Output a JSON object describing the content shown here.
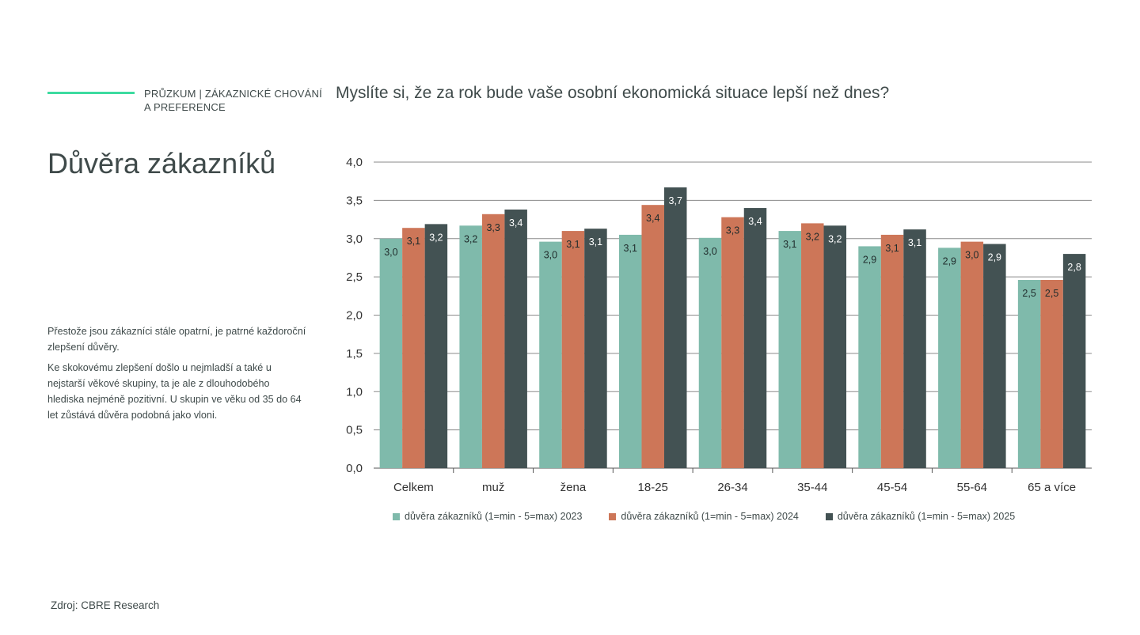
{
  "header": {
    "section_label_line1": "PRŮZKUM |  ZÁKAZNICKÉ CHOVÁNÍ",
    "section_label_line2": "A PREFERENCE",
    "question": "Myslíte si, že za rok bude vaše osobní ekonomická situace lepší než dnes?"
  },
  "page_title": "Důvěra zákazníků",
  "notes": {
    "paragraph1": "Přestože jsou zákazníci stále opatrní, je patrné každoroční zlepšení důvěry.",
    "paragraph2": "Ke skokovému zlepšení došlo u nejmladší a také u nejstarší věkové skupiny, ta je ale z dlouhodobého hlediska nejméně pozitivní. U skupin ve věku od 35 do 64 let zůstává důvěra podobná jako vloni."
  },
  "source": "Zdroj: CBRE Research",
  "colors": {
    "accent": "#3ddba0",
    "series_2023": "#7fbaab",
    "series_2024": "#cd7658",
    "series_2025": "#435253",
    "text": "#3f4a4a"
  },
  "chart_data": {
    "type": "bar",
    "categories": [
      "Celkem",
      "muž",
      "žena",
      "18-25",
      "26-34",
      "35-44",
      "45-54",
      "55-64",
      "65 a více"
    ],
    "series": [
      {
        "name": "důvěra zákazníků (1=min - 5=max) 2023",
        "values": [
          3.0,
          3.17,
          2.96,
          3.05,
          3.01,
          3.1,
          2.9,
          2.88,
          2.46
        ],
        "labels": [
          "3,0",
          "3,2",
          "3,0",
          "3,1",
          "3,0",
          "3,1",
          "2,9",
          "2,9",
          "2,5"
        ]
      },
      {
        "name": "důvěra zákazníků (1=min - 5=max) 2024",
        "values": [
          3.14,
          3.32,
          3.1,
          3.44,
          3.28,
          3.2,
          3.05,
          2.96,
          2.46
        ],
        "labels": [
          "3,1",
          "3,3",
          "3,1",
          "3,4",
          "3,3",
          "3,2",
          "3,1",
          "3,0",
          "2,5"
        ]
      },
      {
        "name": "důvěra zákazníků (1=min - 5=max) 2025",
        "values": [
          3.19,
          3.38,
          3.13,
          3.67,
          3.4,
          3.17,
          3.12,
          2.93,
          2.8
        ],
        "labels": [
          "3,2",
          "3,4",
          "3,1",
          "3,7",
          "3,4",
          "3,2",
          "3,1",
          "2,9",
          "2,8"
        ]
      }
    ],
    "ylim": [
      0,
      4.0
    ],
    "yticks": [
      "0,0",
      "0,5",
      "1,0",
      "1,5",
      "2,0",
      "2,5",
      "3,0",
      "3,5",
      "4,0"
    ],
    "grid": true,
    "legend_position": "bottom"
  }
}
